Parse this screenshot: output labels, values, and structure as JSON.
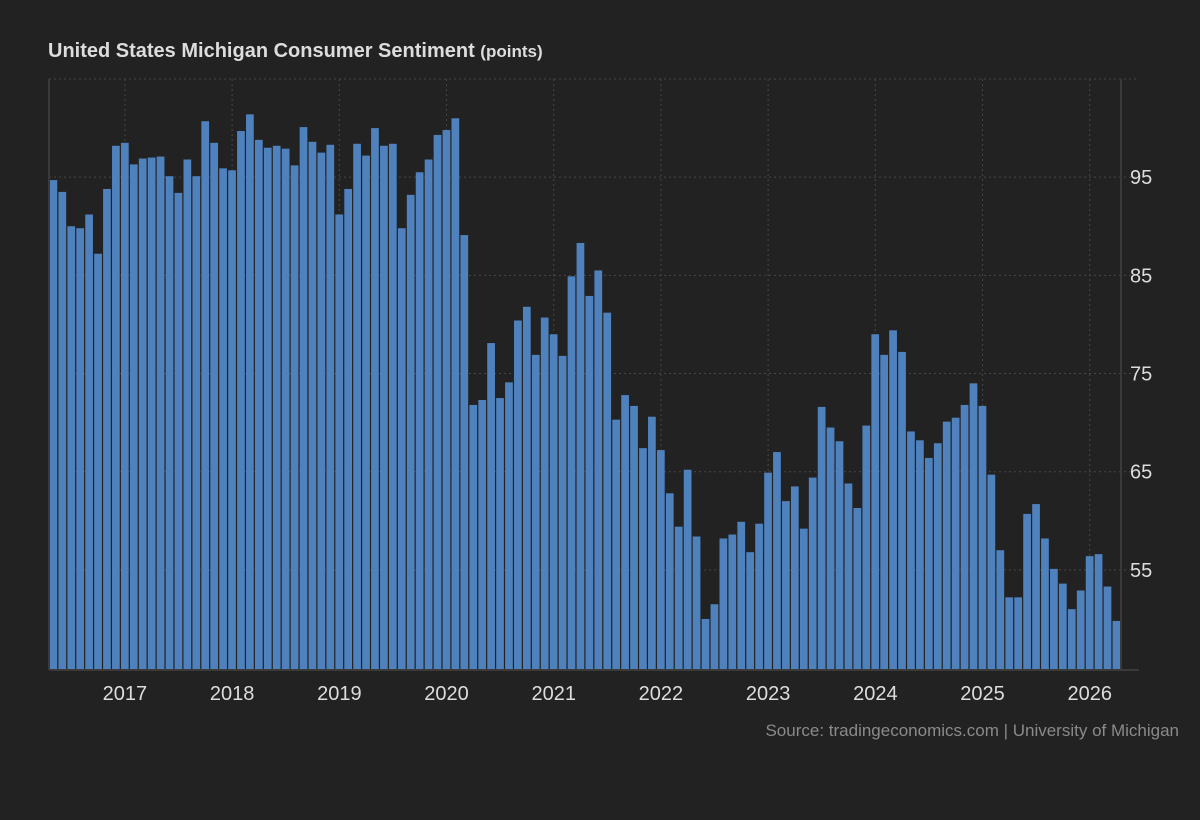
{
  "title": "United States Michigan Consumer Sentiment",
  "unit": "(points)",
  "source": "Source: tradingeconomics.com | University of Michigan",
  "colors": {
    "bar": "#4f81bd",
    "background": "#222222",
    "text": "#dddddd",
    "grid": "#444444"
  },
  "chart_data": {
    "type": "bar",
    "title": "United States Michigan Consumer Sentiment",
    "ylabel": "",
    "xlabel": "",
    "ylim": [
      44.8,
      105
    ],
    "yticks": [
      55,
      65,
      75,
      85,
      95
    ],
    "y_axis_position": "right",
    "grid": true,
    "xtick_labels": [
      "2017",
      "2018",
      "2019",
      "2020",
      "2021",
      "2022",
      "2023",
      "2024",
      "2025",
      "2026"
    ],
    "start": "2016-05",
    "frequency": "monthly",
    "values": [
      94.7,
      93.5,
      90.0,
      89.8,
      91.2,
      87.2,
      93.8,
      98.2,
      98.5,
      96.3,
      96.9,
      97.0,
      97.1,
      95.1,
      93.4,
      96.8,
      95.1,
      100.7,
      98.5,
      95.9,
      95.7,
      99.7,
      101.4,
      98.8,
      98.0,
      98.2,
      97.9,
      96.2,
      100.1,
      98.6,
      97.5,
      98.3,
      91.2,
      93.8,
      98.4,
      97.2,
      100.0,
      98.2,
      98.4,
      89.8,
      93.2,
      95.5,
      96.8,
      99.3,
      99.8,
      101.0,
      89.1,
      71.8,
      72.3,
      78.1,
      72.5,
      74.1,
      80.4,
      81.8,
      76.9,
      80.7,
      79.0,
      76.8,
      84.9,
      88.3,
      82.9,
      85.5,
      81.2,
      70.3,
      72.8,
      71.7,
      67.4,
      70.6,
      67.2,
      62.8,
      59.4,
      65.2,
      58.4,
      50.0,
      51.5,
      58.2,
      58.6,
      59.9,
      56.8,
      59.7,
      64.9,
      67.0,
      62.0,
      63.5,
      59.2,
      64.4,
      71.6,
      69.5,
      68.1,
      63.8,
      61.3,
      69.7,
      79.0,
      76.9,
      79.4,
      77.2,
      69.1,
      68.2,
      66.4,
      67.9,
      70.1,
      70.5,
      71.8,
      74.0,
      71.7,
      64.7,
      57.0,
      52.2,
      52.2,
      60.7,
      61.7,
      58.2,
      55.1,
      53.6,
      51.0,
      52.9,
      56.4,
      56.6,
      53.3,
      49.8
    ]
  }
}
